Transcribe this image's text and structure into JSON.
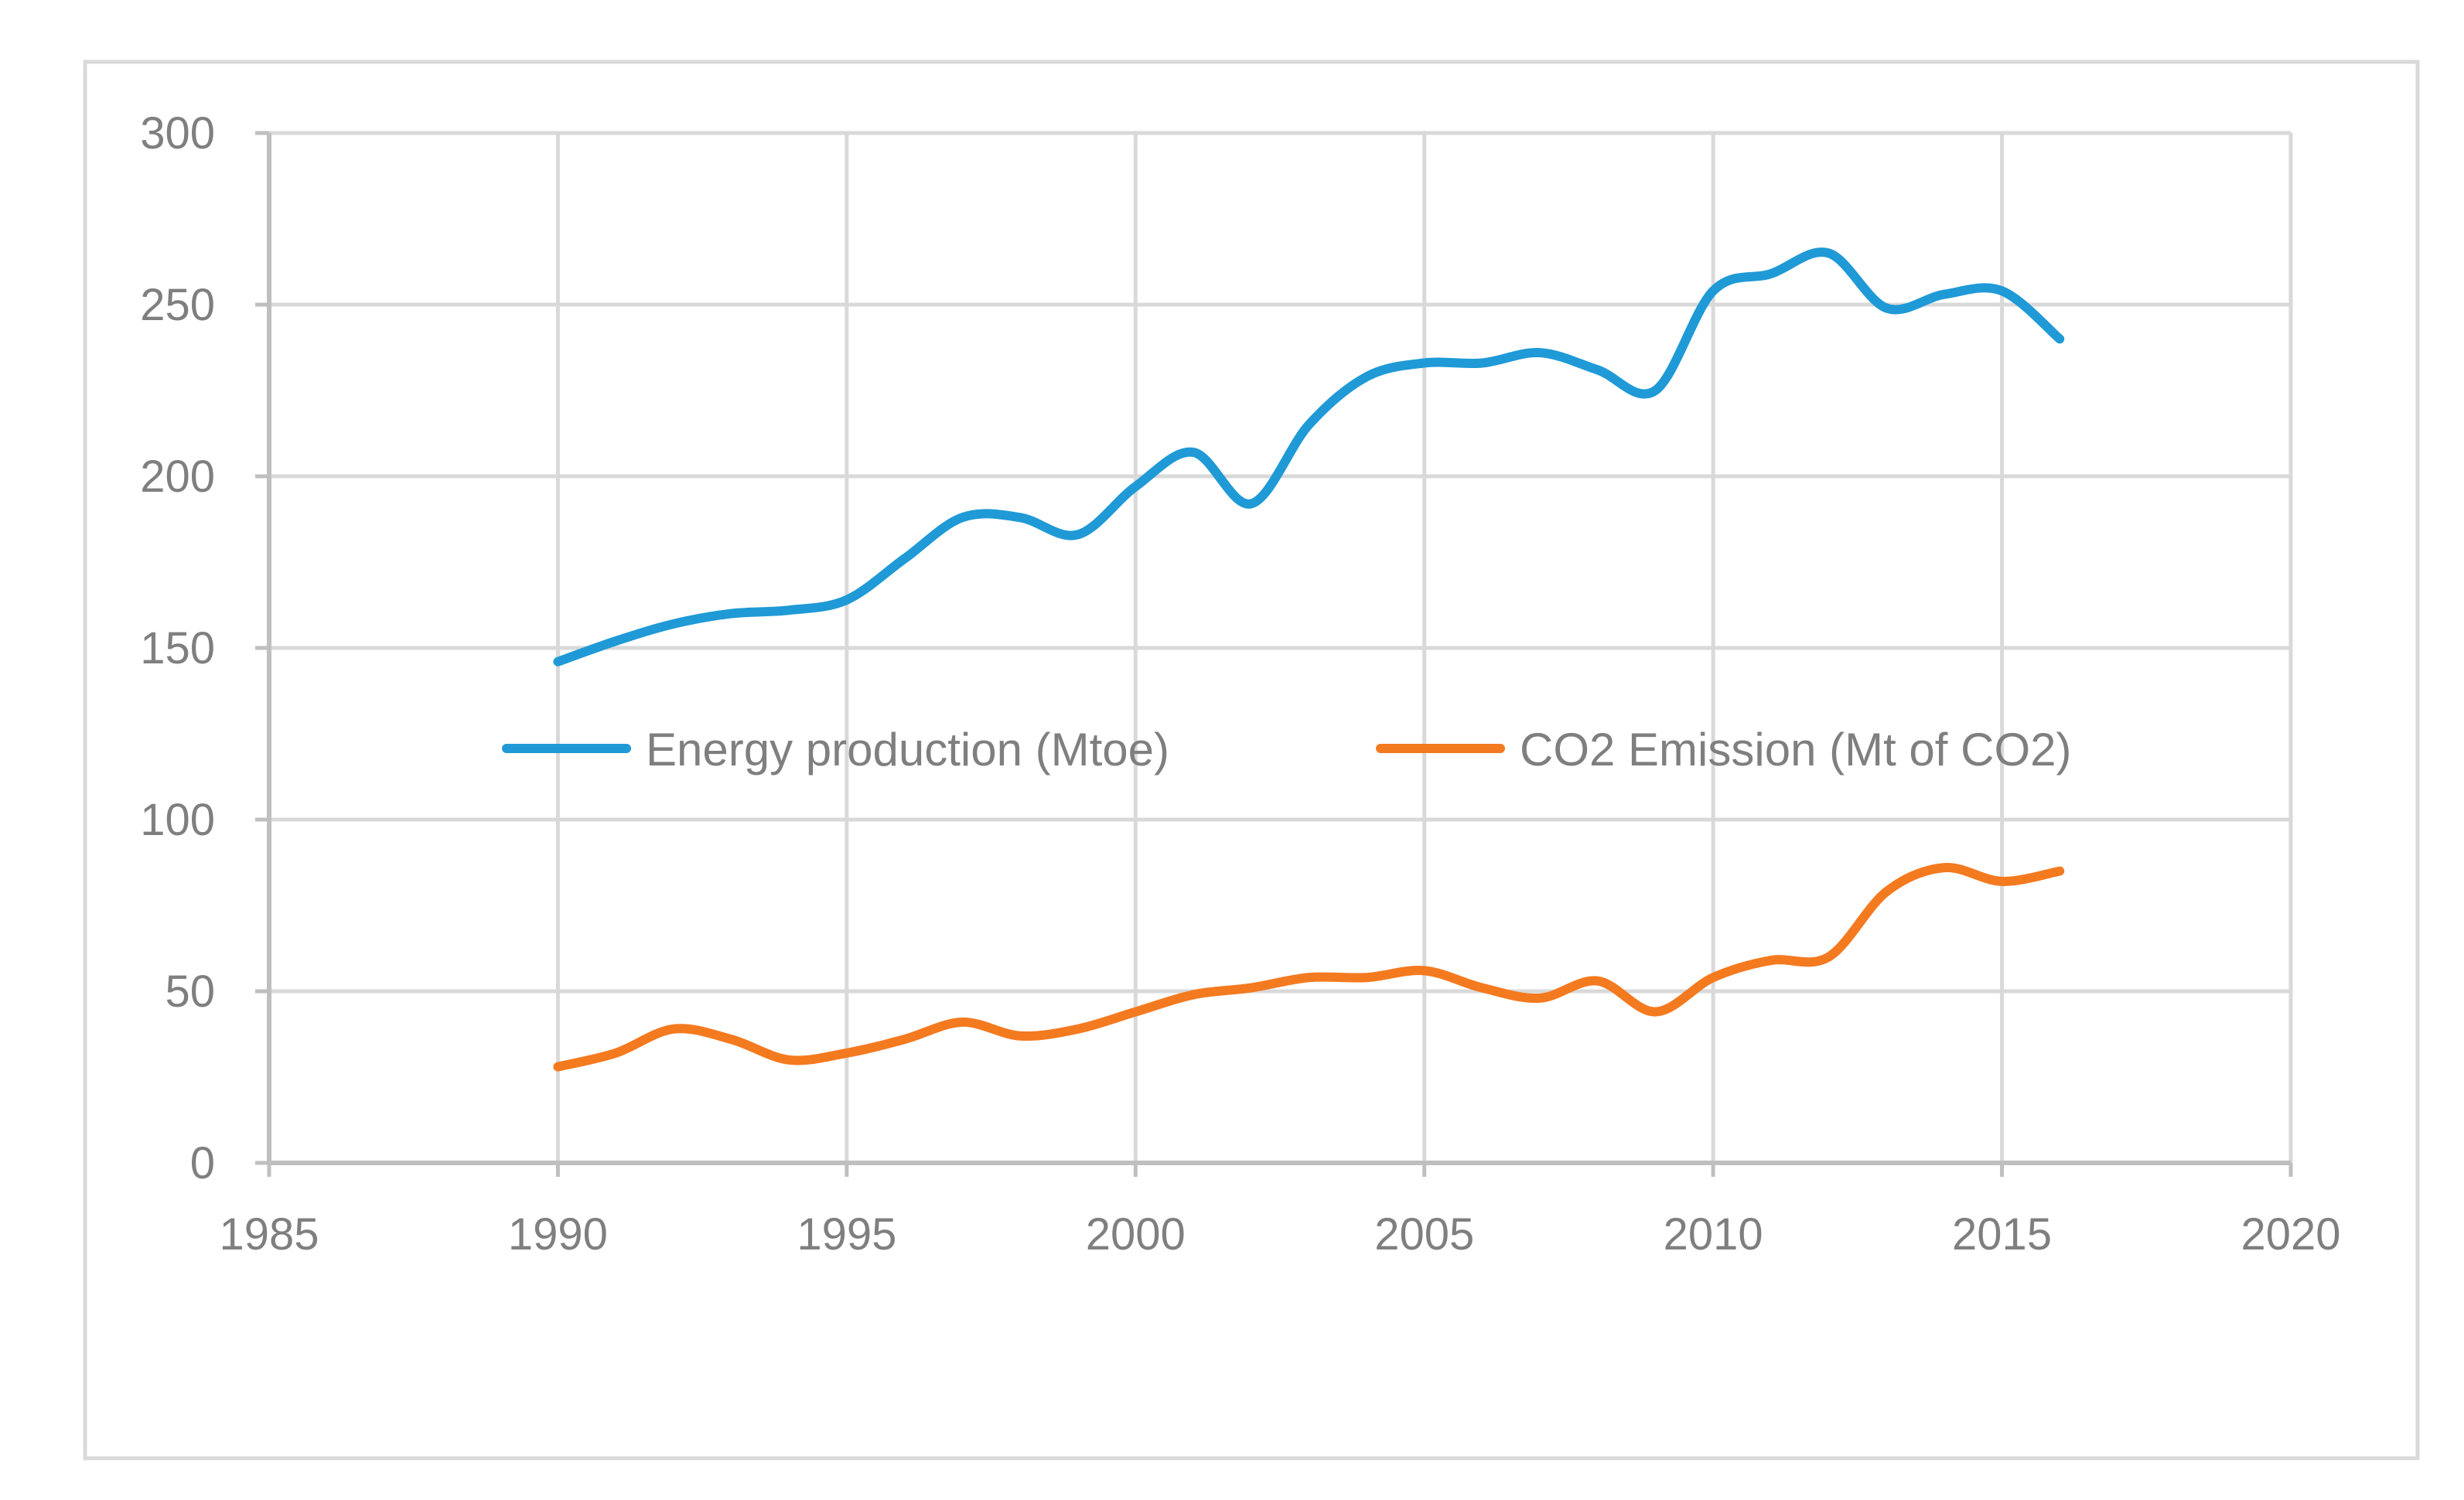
{
  "chart_data": {
    "type": "line",
    "title": "",
    "xlabel": "",
    "ylabel": "",
    "xlim": [
      1985,
      2020
    ],
    "ylim": [
      0,
      300
    ],
    "x_ticks": [
      1985,
      1990,
      1995,
      2000,
      2005,
      2010,
      2015,
      2020
    ],
    "y_ticks": [
      0,
      50,
      100,
      150,
      200,
      250,
      300
    ],
    "grid": true,
    "legend_position": "center",
    "x": [
      1990,
      1991,
      1992,
      1993,
      1994,
      1995,
      1996,
      1997,
      1998,
      1999,
      2000,
      2001,
      2002,
      2003,
      2004,
      2005,
      2006,
      2007,
      2008,
      2009,
      2010,
      2011,
      2012,
      2013,
      2014,
      2015,
      2016
    ],
    "series": [
      {
        "name": "Energy production (Mtoe)",
        "color": "#1f9ad6",
        "values": [
          146,
          152,
          157,
          160,
          161,
          164,
          176,
          188,
          188,
          183,
          197,
          207,
          192,
          215,
          229,
          233,
          233,
          236,
          231,
          225,
          254,
          259,
          265,
          249,
          253,
          254,
          240
        ]
      },
      {
        "name": "CO2 Emission (Mt of CO2)",
        "color": "#f47a20",
        "values": [
          28,
          32,
          39,
          36,
          30,
          32,
          36,
          41,
          37,
          39,
          44,
          49,
          51,
          54,
          54,
          56,
          51,
          48,
          53,
          44,
          54,
          59,
          60,
          79,
          86,
          82,
          85
        ]
      }
    ]
  }
}
